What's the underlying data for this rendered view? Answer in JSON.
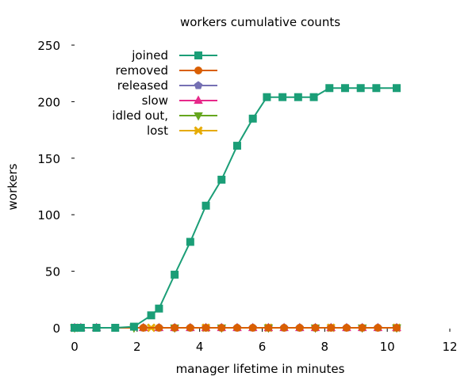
{
  "chart_data": {
    "type": "line",
    "title": "workers cumulative counts",
    "xlabel": "manager lifetime in minutes",
    "ylabel": "workers",
    "xlim": [
      0,
      12
    ],
    "ylim": [
      0,
      250
    ],
    "xticks": [
      0,
      2,
      4,
      6,
      8,
      10,
      12
    ],
    "yticks": [
      0,
      50,
      100,
      150,
      200,
      250
    ],
    "grid": false,
    "legend_position": "top-left",
    "series": [
      {
        "name": "joined",
        "color": "#1b9e77",
        "marker": "square",
        "x": [
          0.0,
          0.2,
          0.7,
          1.3,
          1.9,
          2.45,
          2.7,
          3.2,
          3.7,
          4.2,
          4.7,
          5.2,
          5.7,
          6.15,
          6.65,
          7.15,
          7.65,
          8.15,
          8.65,
          9.15,
          9.65,
          10.3
        ],
        "y": [
          0,
          0,
          0,
          0,
          1,
          11,
          17,
          47,
          76,
          108,
          131,
          161,
          185,
          204,
          204,
          204,
          204,
          212,
          212,
          212,
          212,
          212
        ]
      },
      {
        "name": "removed",
        "color": "#d95f02",
        "marker": "circle",
        "x": [
          0.0,
          0.2,
          0.7,
          2.2,
          2.7,
          3.2,
          3.7,
          4.2,
          4.7,
          5.2,
          5.7,
          6.2,
          6.7,
          7.2,
          7.7,
          8.2,
          8.7,
          9.2,
          9.7,
          10.3
        ],
        "y": [
          0,
          0,
          0,
          0,
          0,
          0,
          0,
          0,
          0,
          0,
          0,
          0,
          0,
          0,
          0,
          0,
          0,
          0,
          0,
          0
        ]
      },
      {
        "name": "released",
        "color": "#7570b3",
        "marker": "pentagon",
        "x": [
          0.0,
          0.2,
          0.7,
          2.2,
          2.7,
          3.2,
          3.7,
          4.2,
          4.7,
          5.2,
          5.7,
          6.2,
          6.7,
          7.2,
          7.7,
          8.2,
          8.7,
          9.2,
          9.7,
          10.3
        ],
        "y": [
          0,
          0,
          0,
          0,
          0,
          0,
          0,
          0,
          0,
          0,
          0,
          0,
          0,
          0,
          0,
          0,
          0,
          0,
          0,
          0
        ]
      },
      {
        "name": "slow",
        "color": "#e7298a",
        "marker": "triangle-up",
        "x": [
          0.0,
          0.2,
          0.7,
          2.2,
          2.7,
          3.2,
          3.7,
          4.2,
          4.7,
          5.2,
          5.7,
          6.2,
          6.7,
          7.2,
          7.7,
          8.2,
          8.7,
          9.2,
          9.7,
          10.3
        ],
        "y": [
          0,
          0,
          0,
          0,
          0,
          0,
          0,
          0,
          0,
          0,
          0,
          0,
          0,
          0,
          0,
          0,
          0,
          0,
          0,
          0
        ]
      },
      {
        "name": "idled out,",
        "color": "#66a61e",
        "marker": "triangle-down",
        "x": [
          0.0,
          1.9,
          3.2,
          4.7,
          6.2,
          7.7,
          9.2,
          10.3
        ],
        "y": [
          0,
          0,
          0,
          0,
          0,
          0,
          0,
          0
        ]
      },
      {
        "name": "lost",
        "color": "#e6ab02",
        "marker": "star",
        "x": [
          0.0,
          2.45,
          4.2,
          6.2,
          8.2,
          10.3
        ],
        "y": [
          0,
          0,
          0,
          0,
          0,
          0
        ]
      }
    ]
  }
}
